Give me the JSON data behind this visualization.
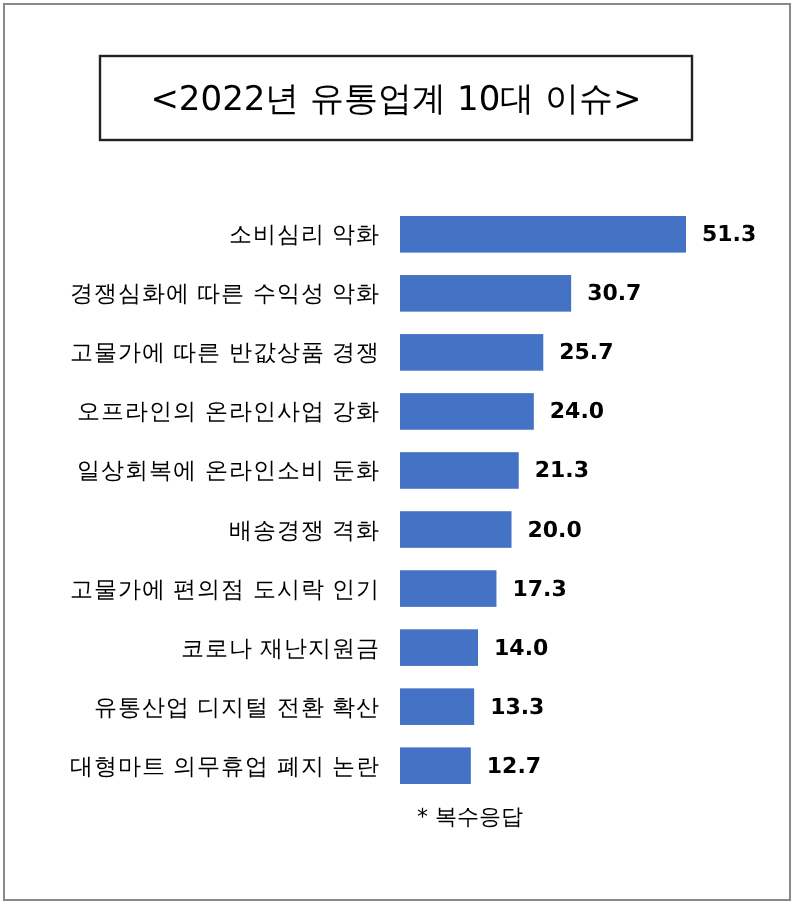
{
  "chart_data": {
    "type": "bar",
    "orientation": "horizontal",
    "title": "<2022년 유통업계 10대 이슈>",
    "categories": [
      "소비심리 악화",
      "경쟁심화에 따른 수익성 악화",
      "고물가에 따른 반값상품 경쟁",
      "오프라인의 온라인사업 강화",
      "일상회복에 온라인소비 둔화",
      "배송경쟁 격화",
      "고물가에 편의점 도시락 인기",
      "코로나 재난지원금",
      "유통산업 디지털 전환 확산",
      "대형마트 의무휴업 폐지 논란"
    ],
    "values": [
      51.3,
      30.7,
      25.7,
      24.0,
      21.3,
      20.0,
      17.3,
      14.0,
      13.3,
      12.7
    ],
    "value_labels": [
      "51.3",
      "30.7",
      "25.7",
      "24.0",
      "21.3",
      "20.0",
      "17.3",
      "14.0",
      "13.3",
      "12.7"
    ],
    "color": "#4472c4",
    "annotations": [
      "* 복수응답"
    ]
  }
}
